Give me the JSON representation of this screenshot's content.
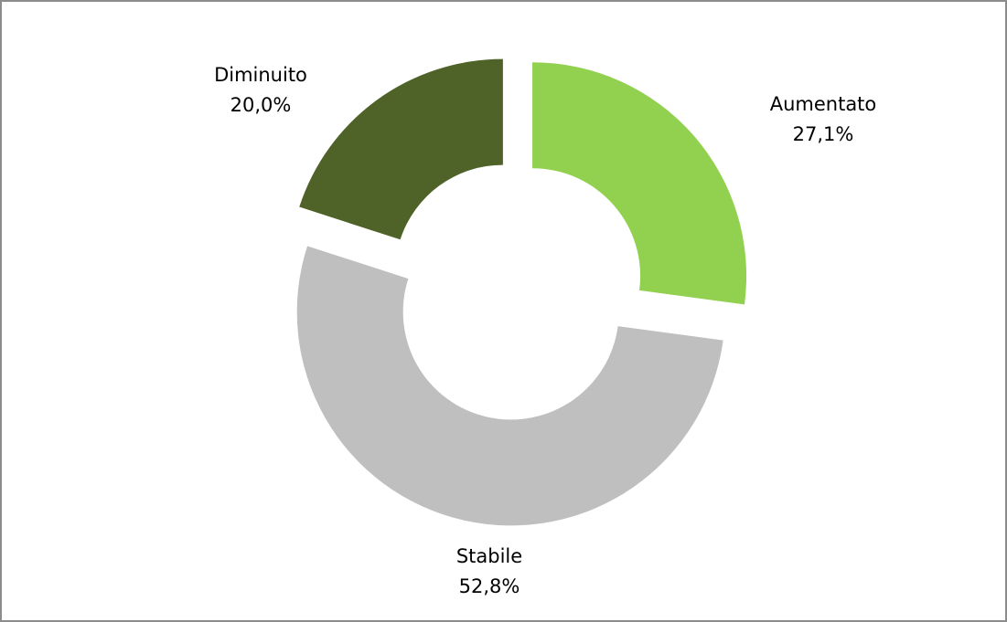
{
  "chart_data": {
    "type": "donut",
    "categories": [
      "Aumentato",
      "Stabile",
      "Diminuito"
    ],
    "values": [
      27.1,
      52.8,
      20.0
    ],
    "value_labels": [
      "27,1%",
      "52,8%",
      "20,0%"
    ],
    "colors": [
      "#92d050",
      "#bfbfbf",
      "#4f6228"
    ],
    "exploded": true
  }
}
